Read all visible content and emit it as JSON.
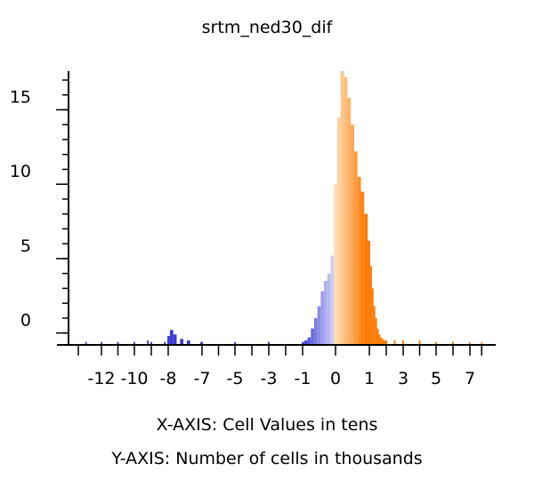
{
  "chart_data": {
    "type": "bar",
    "title": "srtm_ned30_dif",
    "xlabel": "X-AXIS: Cell Values in tens",
    "ylabel": "Y-AXIS: Number of cells in thousands",
    "xlim": [
      -13.5,
      9.2
    ],
    "ylim": [
      -0.8,
      17.6
    ],
    "x_ticks": [
      -12,
      -10,
      -8,
      -7,
      -5,
      -3,
      -1,
      0,
      1,
      3,
      5,
      7
    ],
    "y_ticks": [
      0,
      5,
      10,
      15
    ],
    "grid": false,
    "bin_width": 0.1,
    "colors": {
      "negative": "#3c3cd8",
      "negative_near_zero": "#dcdcf8",
      "positive_near_zero": "#ffdcb4",
      "positive": "#ff7800",
      "axis": "#000000"
    },
    "bins": [
      {
        "x": -13.0,
        "y": -0.6
      },
      {
        "x": -12.0,
        "y": -0.6
      },
      {
        "x": -11.0,
        "y": -0.6
      },
      {
        "x": -10.0,
        "y": -0.6
      },
      {
        "x": -9.2,
        "y": -0.5
      },
      {
        "x": -9.0,
        "y": -0.6
      },
      {
        "x": -8.2,
        "y": -0.6
      },
      {
        "x": -8.0,
        "y": -0.2
      },
      {
        "x": -7.9,
        "y": 0.2
      },
      {
        "x": -7.8,
        "y": -0.1
      },
      {
        "x": -7.6,
        "y": -0.4
      },
      {
        "x": -7.4,
        "y": -0.5
      },
      {
        "x": -7.0,
        "y": -0.6
      },
      {
        "x": -5.0,
        "y": -0.6
      },
      {
        "x": -3.0,
        "y": -0.6
      },
      {
        "x": -1.0,
        "y": -0.6
      },
      {
        "x": -0.9,
        "y": -0.5
      },
      {
        "x": -0.8,
        "y": -0.3
      },
      {
        "x": -0.7,
        "y": 0.3
      },
      {
        "x": -0.6,
        "y": 1.0
      },
      {
        "x": -0.5,
        "y": 1.8
      },
      {
        "x": -0.4,
        "y": 2.8
      },
      {
        "x": -0.3,
        "y": 3.5
      },
      {
        "x": -0.2,
        "y": 4.0
      },
      {
        "x": -0.1,
        "y": 5.2
      },
      {
        "x": 0.0,
        "y": 10.0
      },
      {
        "x": 0.1,
        "y": 14.5
      },
      {
        "x": 0.2,
        "y": 17.6
      },
      {
        "x": 0.3,
        "y": 17.2
      },
      {
        "x": 0.4,
        "y": 15.8
      },
      {
        "x": 0.5,
        "y": 14.0
      },
      {
        "x": 0.6,
        "y": 12.2
      },
      {
        "x": 0.7,
        "y": 10.5
      },
      {
        "x": 0.8,
        "y": 9.5
      },
      {
        "x": 0.9,
        "y": 8.0
      },
      {
        "x": 1.0,
        "y": 6.2
      },
      {
        "x": 1.1,
        "y": 4.5
      },
      {
        "x": 1.2,
        "y": 3.0
      },
      {
        "x": 1.3,
        "y": 1.8
      },
      {
        "x": 1.4,
        "y": 1.0
      },
      {
        "x": 1.5,
        "y": 0.3
      },
      {
        "x": 1.6,
        "y": -0.1
      },
      {
        "x": 1.7,
        "y": -0.3
      },
      {
        "x": 1.8,
        "y": -0.4
      },
      {
        "x": 1.9,
        "y": -0.5
      },
      {
        "x": 2.0,
        "y": -0.5
      },
      {
        "x": 2.5,
        "y": -0.5
      },
      {
        "x": 3.0,
        "y": -0.5
      },
      {
        "x": 4.0,
        "y": -0.5
      },
      {
        "x": 5.0,
        "y": -0.6
      },
      {
        "x": 6.0,
        "y": -0.6
      },
      {
        "x": 7.0,
        "y": -0.6
      },
      {
        "x": 8.0,
        "y": -0.6
      }
    ]
  }
}
